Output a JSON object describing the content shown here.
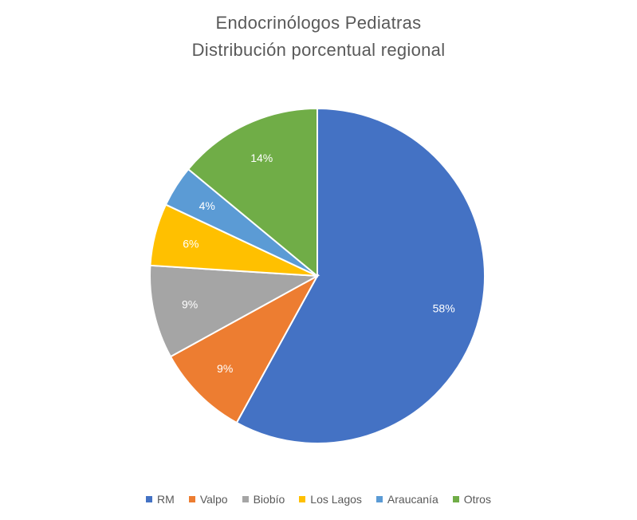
{
  "chart_data": {
    "type": "pie",
    "title": "Endocrinólogos Pediatras",
    "subtitle": "Distribución porcentual regional",
    "categories": [
      "RM",
      "Valpo",
      "Biobío",
      "Los Lagos",
      "Araucanía",
      "Otros"
    ],
    "values": [
      58,
      9,
      9,
      6,
      4,
      14
    ],
    "labels": [
      "58%",
      "9%",
      "9%",
      "6%",
      "4%",
      "14%"
    ],
    "colors": [
      "#4472C4",
      "#ED7D31",
      "#A5A5A5",
      "#FFC000",
      "#5B9BD5",
      "#70AD47"
    ],
    "legend_position": "bottom"
  }
}
